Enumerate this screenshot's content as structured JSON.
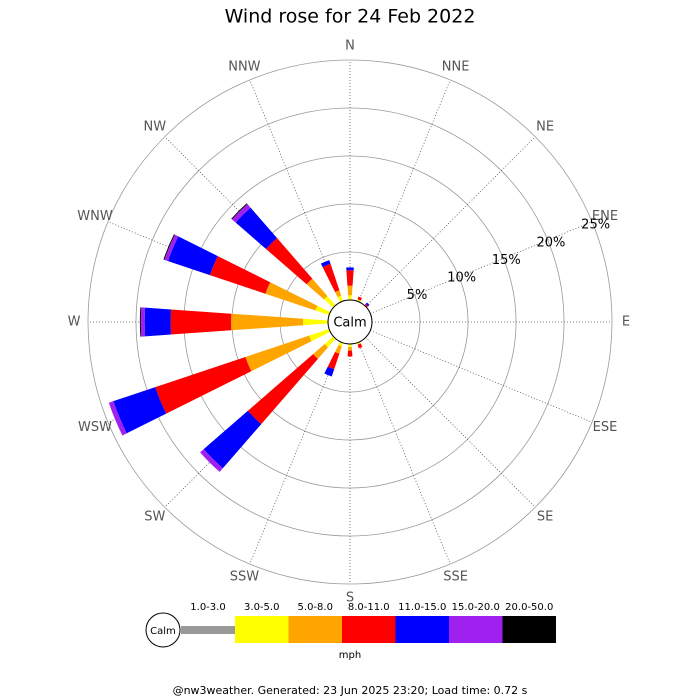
{
  "chart_data": {
    "type": "windrose",
    "title": "Wind rose for 24 Feb 2022",
    "calm_label": "Calm",
    "legend_title": "mph",
    "footer": "@nw3weather. Generated: 23 Jun 2025 23:20; Load time: 0.72 s",
    "categories": [
      "N",
      "NNE",
      "NE",
      "ENE",
      "E",
      "ESE",
      "SE",
      "SSE",
      "S",
      "SSW",
      "SW",
      "WSW",
      "W",
      "WNW",
      "NW",
      "NNW"
    ],
    "rlim": [
      0,
      25
    ],
    "rticks": [
      {
        "value": 5,
        "label": "5%"
      },
      {
        "value": 10,
        "label": "10%"
      },
      {
        "value": 15,
        "label": "15%"
      },
      {
        "value": 20,
        "label": "20%"
      },
      {
        "value": 25,
        "label": "25%"
      }
    ],
    "series": [
      {
        "name": "1.0-3.0",
        "color": "#999999",
        "values": [
          0,
          0,
          0,
          0,
          0,
          0,
          0,
          0,
          0,
          0,
          0,
          0,
          0,
          0,
          0,
          0
        ]
      },
      {
        "name": "3.0-5.0",
        "color": "#ffff00",
        "values": [
          0.5,
          0.2,
          0,
          0,
          0,
          0,
          0,
          0.2,
          0.3,
          0.4,
          1.2,
          2.2,
          2.6,
          1.5,
          1.3,
          0.6
        ]
      },
      {
        "name": "5.0-8.0",
        "color": "#ffa500",
        "values": [
          1.0,
          0,
          0,
          0,
          0,
          0,
          0,
          0,
          0.4,
          0.8,
          1.6,
          7.0,
          7.5,
          5.5,
          2.4,
          0.6
        ]
      },
      {
        "name": "8.0-11.0",
        "color": "#ff0000",
        "values": [
          1.6,
          0.3,
          0.2,
          0,
          0,
          0,
          0,
          0.4,
          0.6,
          1.7,
          9.0,
          9.9,
          6.3,
          6.1,
          5.6,
          2.9
        ]
      },
      {
        "name": "11.0-15.0",
        "color": "#0000ff",
        "values": [
          0.3,
          0,
          0.2,
          0,
          0,
          0,
          0,
          0,
          0,
          0.8,
          6.1,
          4.6,
          2.7,
          4.6,
          4.2,
          0.4
        ]
      },
      {
        "name": "15.0-20.0",
        "color": "#a020f0",
        "values": [
          0,
          0,
          0,
          0,
          0,
          0,
          0,
          0,
          0,
          0,
          0.5,
          0.5,
          0.4,
          0.4,
          0.5,
          0
        ]
      },
      {
        "name": "20.0-50.0",
        "color": "#000000",
        "values": [
          0,
          0,
          0,
          0,
          0,
          0,
          0,
          0,
          0,
          0,
          0,
          0,
          0.1,
          0.1,
          0.1,
          0
        ]
      }
    ]
  }
}
